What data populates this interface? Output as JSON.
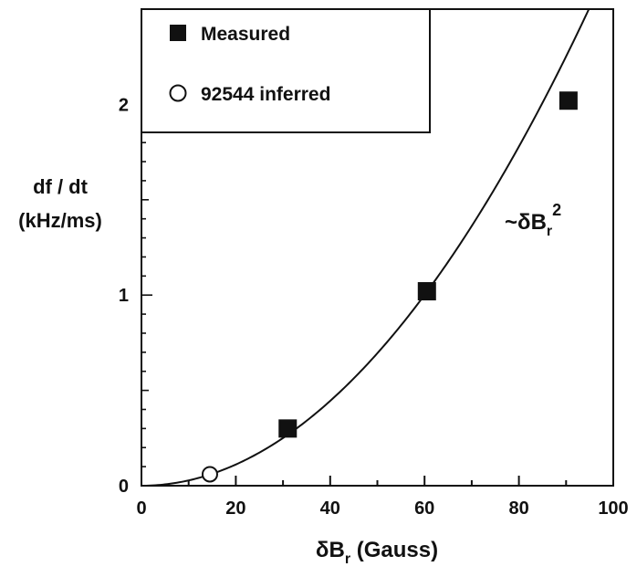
{
  "chart_data": {
    "type": "scatter",
    "x_values_label": "Gauss",
    "ylabel_line1": "df / dt",
    "ylabel_line2": "(kHz/ms)",
    "xlabel_symbol": "δB",
    "xlabel_sub": "r",
    "xlabel_units": " (Gauss)",
    "xlim": [
      0,
      100
    ],
    "ylim": [
      0,
      2.5
    ],
    "xticks": [
      0,
      20,
      40,
      60,
      80,
      100
    ],
    "yticks": [
      0,
      1,
      2
    ],
    "series": [
      {
        "name": "Measured",
        "marker": "filled-square",
        "color": "#111111",
        "points": [
          {
            "x": 31,
            "y": 0.3
          },
          {
            "x": 60.5,
            "y": 1.02
          },
          {
            "x": 90.5,
            "y": 2.02
          }
        ]
      },
      {
        "name": "92544 inferred",
        "marker": "open-circle",
        "color": "#111111",
        "points": [
          {
            "x": 14.5,
            "y": 0.06
          }
        ]
      }
    ],
    "fit_curve": {
      "form": "y = k * x^2",
      "k": 0.000278,
      "label_prefix": "~δB",
      "label_sub": "r",
      "label_sup": "2"
    },
    "legend_position": "top-left",
    "grid": false
  }
}
